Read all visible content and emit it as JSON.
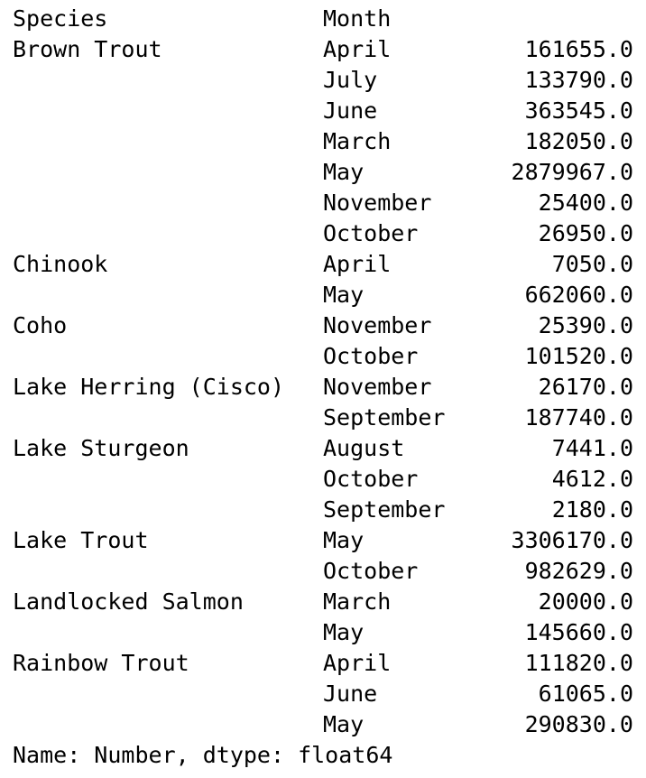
{
  "header": {
    "index_level_0": "Species",
    "index_level_1": "Month"
  },
  "rows": [
    {
      "species": "Brown Trout",
      "month": "April",
      "value": "161655.0"
    },
    {
      "species": "",
      "month": "July",
      "value": "133790.0"
    },
    {
      "species": "",
      "month": "June",
      "value": "363545.0"
    },
    {
      "species": "",
      "month": "March",
      "value": "182050.0"
    },
    {
      "species": "",
      "month": "May",
      "value": "2879967.0"
    },
    {
      "species": "",
      "month": "November",
      "value": "25400.0"
    },
    {
      "species": "",
      "month": "October",
      "value": "26950.0"
    },
    {
      "species": "Chinook",
      "month": "April",
      "value": "7050.0"
    },
    {
      "species": "",
      "month": "May",
      "value": "662060.0"
    },
    {
      "species": "Coho",
      "month": "November",
      "value": "25390.0"
    },
    {
      "species": "",
      "month": "October",
      "value": "101520.0"
    },
    {
      "species": "Lake Herring (Cisco)",
      "month": "November",
      "value": "26170.0"
    },
    {
      "species": "",
      "month": "September",
      "value": "187740.0"
    },
    {
      "species": "Lake Sturgeon",
      "month": "August",
      "value": "7441.0"
    },
    {
      "species": "",
      "month": "October",
      "value": "4612.0"
    },
    {
      "species": "",
      "month": "September",
      "value": "2180.0"
    },
    {
      "species": "Lake Trout",
      "month": "May",
      "value": "3306170.0"
    },
    {
      "species": "",
      "month": "October",
      "value": "982629.0"
    },
    {
      "species": "Landlocked Salmon",
      "month": "March",
      "value": "20000.0"
    },
    {
      "species": "",
      "month": "May",
      "value": "145660.0"
    },
    {
      "species": "Rainbow Trout",
      "month": "April",
      "value": "111820.0"
    },
    {
      "species": "",
      "month": "June",
      "value": "61065.0"
    },
    {
      "species": "",
      "month": "May",
      "value": "290830.0"
    }
  ],
  "footer": {
    "text": "Name: Number, dtype: float64"
  }
}
